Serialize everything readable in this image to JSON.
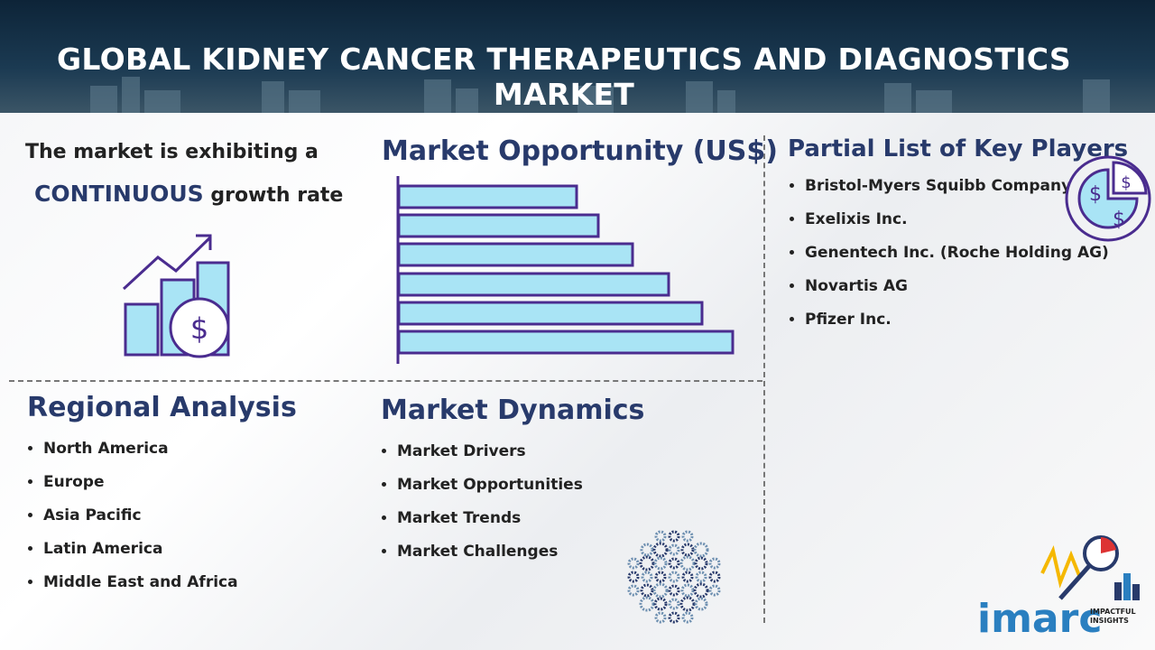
{
  "header": {
    "title": "GLOBAL KIDNEY CANCER THERAPEUTICS AND DIAGNOSTICS MARKET"
  },
  "growth": {
    "line1": "The market is exhibiting a",
    "highlight": "CONTINUOUS",
    "rest": "growth rate",
    "icon_symbol": "$"
  },
  "opportunity": {
    "title": "Market Opportunity (US$)"
  },
  "key_players": {
    "title": "Partial List of Key Players",
    "items": [
      "Bristol-Myers Squibb Company",
      "Exelixis Inc.",
      "Genentech Inc. (Roche Holding AG)",
      "Novartis AG",
      "Pfizer Inc."
    ]
  },
  "regional": {
    "title": "Regional Analysis",
    "items": [
      "North America",
      "Europe",
      "Asia Pacific",
      "Latin America",
      "Middle East and Africa"
    ]
  },
  "dynamics": {
    "title": "Market Dynamics",
    "items": [
      "Market Drivers",
      "Market Opportunities",
      "Market Trends",
      "Market Challenges"
    ]
  },
  "logo": {
    "name": "imarc",
    "tagline": "IMPACTFUL INSIGHTS"
  }
}
